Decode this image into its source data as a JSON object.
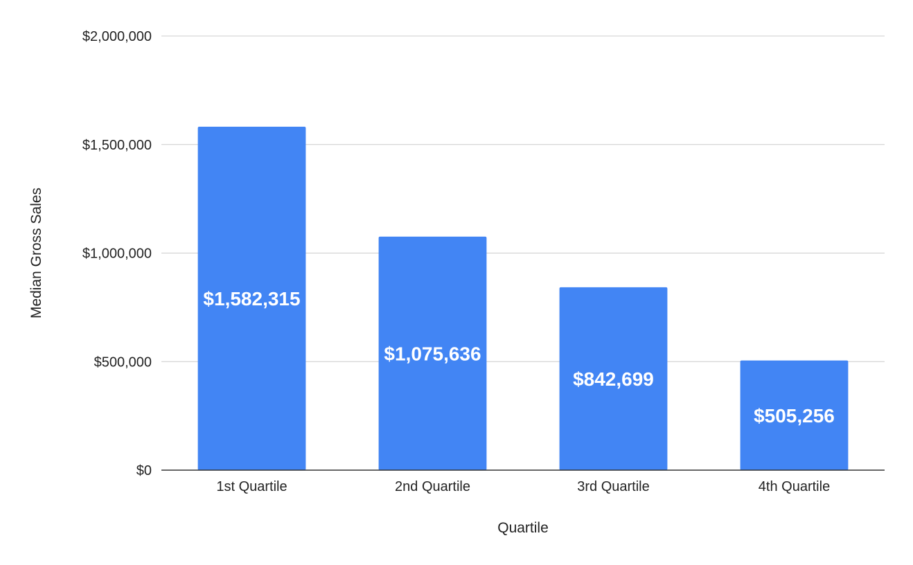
{
  "chart_data": {
    "type": "bar",
    "title": "",
    "xlabel": "Quartile",
    "ylabel": "Median Gross Sales",
    "categories": [
      "1st Quartile",
      "2nd Quartile",
      "3rd Quartile",
      "4th Quartile"
    ],
    "series": [
      {
        "values": [
          1582315,
          1075636,
          842699,
          505256
        ],
        "color": "#4285f4"
      }
    ],
    "data_labels": [
      "$1,582,315",
      "$1,075,636",
      "$842,699",
      "$505,256"
    ],
    "ylim": [
      0,
      2000000
    ],
    "yticks": [
      0,
      500000,
      1000000,
      1500000,
      2000000
    ],
    "ytick_labels": [
      "$0",
      "$500,000",
      "$1,000,000",
      "$1,500,000",
      "$2,000,000"
    ],
    "grid": true,
    "legend": "none",
    "colors": {
      "bar": "#4285f4",
      "grid": "#cccccc",
      "axis": "#333333",
      "text": "#222222",
      "data_label": "#ffffff"
    }
  }
}
